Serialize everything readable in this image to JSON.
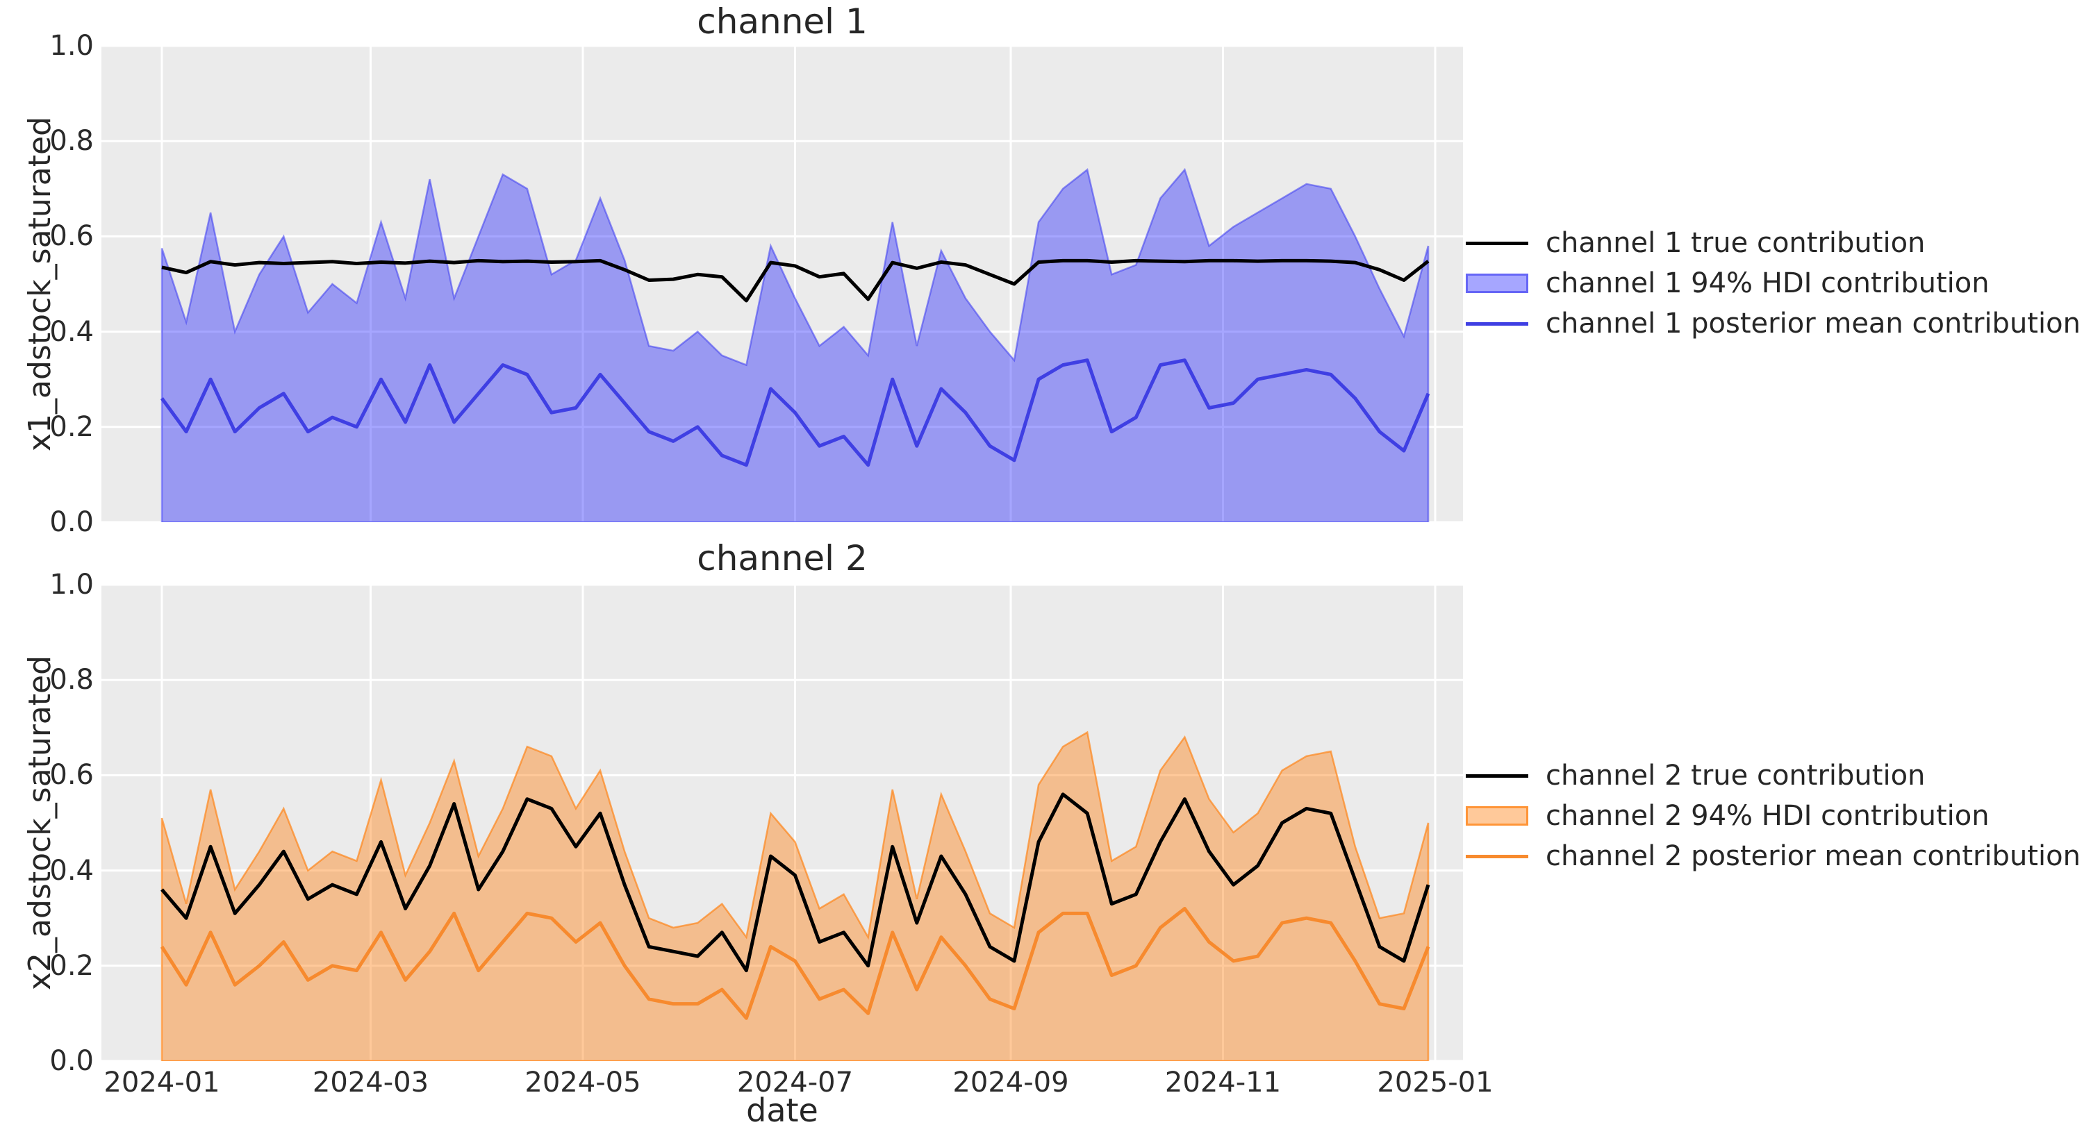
{
  "figure": {
    "background": "#ffffff",
    "plot_background": "#ebebeb",
    "grid_color": "#ffffff",
    "text_color": "#262626"
  },
  "xlabel": "date",
  "y_tick_labels": [
    "0.0",
    "0.2",
    "0.4",
    "0.6",
    "0.8",
    "1.0"
  ],
  "y_tick_values": [
    0.0,
    0.2,
    0.4,
    0.6,
    0.8,
    1.0
  ],
  "x_tick_labels": [
    "2024-01",
    "2024-03",
    "2024-05",
    "2024-07",
    "2024-09",
    "2024-11",
    "2025-01"
  ],
  "x_tick_day_offsets": [
    0,
    60,
    121,
    182,
    244,
    305,
    366
  ],
  "chart_data": [
    {
      "type": "area",
      "title": "channel 1",
      "ylabel": "x1_adstock_saturated",
      "xlabel": "date",
      "ylim": [
        0.0,
        1.0
      ],
      "grid": true,
      "legend_position": "center right",
      "x_start_date": "2024-01-01",
      "x_step_days": 7,
      "n_points": 53,
      "band": {
        "name": "channel 1 94% HDI contribution",
        "lower": 0,
        "fill": "rgba(0,0,255,0.35)",
        "edge": "rgba(60,60,240,0.55)",
        "upper": [
          0.575,
          0.42,
          0.65,
          0.4,
          0.52,
          0.6,
          0.44,
          0.5,
          0.46,
          0.63,
          0.47,
          0.72,
          0.47,
          0.6,
          0.73,
          0.7,
          0.52,
          0.55,
          0.68,
          0.55,
          0.37,
          0.36,
          0.4,
          0.35,
          0.33,
          0.58,
          0.47,
          0.37,
          0.41,
          0.35,
          0.63,
          0.37,
          0.57,
          0.47,
          0.4,
          0.34,
          0.63,
          0.7,
          0.74,
          0.52,
          0.54,
          0.68,
          0.74,
          0.58,
          0.62,
          0.65,
          0.68,
          0.71,
          0.7,
          0.6,
          0.49,
          0.39,
          0.58
        ]
      },
      "series": [
        {
          "name": "channel 1 true contribution",
          "color": "#000000",
          "width": 5,
          "values": [
            0.535,
            0.524,
            0.547,
            0.54,
            0.545,
            0.543,
            0.545,
            0.547,
            0.543,
            0.546,
            0.544,
            0.548,
            0.545,
            0.549,
            0.547,
            0.548,
            0.546,
            0.547,
            0.549,
            0.53,
            0.508,
            0.51,
            0.52,
            0.515,
            0.465,
            0.545,
            0.538,
            0.515,
            0.522,
            0.468,
            0.545,
            0.533,
            0.546,
            0.54,
            0.52,
            0.5,
            0.546,
            0.549,
            0.549,
            0.546,
            0.549,
            0.548,
            0.547,
            0.549,
            0.549,
            0.548,
            0.549,
            0.549,
            0.548,
            0.545,
            0.53,
            0.508,
            0.548
          ]
        },
        {
          "name": "channel 1 posterior mean contribution",
          "color": "#3f3fe3",
          "width": 5,
          "values": [
            0.26,
            0.19,
            0.3,
            0.19,
            0.24,
            0.27,
            0.19,
            0.22,
            0.2,
            0.3,
            0.21,
            0.33,
            0.21,
            0.27,
            0.33,
            0.31,
            0.23,
            0.24,
            0.31,
            0.25,
            0.19,
            0.17,
            0.2,
            0.14,
            0.12,
            0.28,
            0.23,
            0.16,
            0.18,
            0.12,
            0.3,
            0.16,
            0.28,
            0.23,
            0.16,
            0.13,
            0.3,
            0.33,
            0.34,
            0.19,
            0.22,
            0.33,
            0.34,
            0.24,
            0.25,
            0.3,
            0.31,
            0.32,
            0.31,
            0.26,
            0.19,
            0.15,
            0.27
          ]
        }
      ],
      "legend": [
        {
          "label": "channel 1 true contribution",
          "swatch": "line",
          "color": "#000000"
        },
        {
          "label": "channel 1 94% HDI contribution",
          "swatch": "patch",
          "fill": "rgba(0,0,255,0.35)",
          "edge": "rgba(60,60,240,0.6)"
        },
        {
          "label": "channel 1 posterior mean contribution",
          "swatch": "line",
          "color": "#3f3fe3"
        }
      ]
    },
    {
      "type": "area",
      "title": "channel 2",
      "ylabel": "x2_adstock_saturated",
      "xlabel": "date",
      "ylim": [
        0.0,
        1.0
      ],
      "grid": true,
      "legend_position": "center right",
      "x_start_date": "2024-01-01",
      "x_step_days": 7,
      "n_points": 53,
      "band": {
        "name": "channel 2 94% HDI contribution",
        "lower": 0,
        "fill": "rgba(255,127,14,0.42)",
        "edge": "rgba(255,127,14,0.65)",
        "upper": [
          0.51,
          0.33,
          0.57,
          0.36,
          0.44,
          0.53,
          0.4,
          0.44,
          0.42,
          0.59,
          0.39,
          0.5,
          0.63,
          0.43,
          0.53,
          0.66,
          0.64,
          0.53,
          0.61,
          0.44,
          0.3,
          0.28,
          0.29,
          0.33,
          0.26,
          0.52,
          0.46,
          0.32,
          0.35,
          0.26,
          0.57,
          0.34,
          0.56,
          0.44,
          0.31,
          0.28,
          0.58,
          0.66,
          0.69,
          0.42,
          0.45,
          0.61,
          0.68,
          0.55,
          0.48,
          0.52,
          0.61,
          0.64,
          0.65,
          0.45,
          0.3,
          0.31,
          0.5
        ]
      },
      "series": [
        {
          "name": "channel 2 true contribution",
          "color": "#000000",
          "width": 5,
          "values": [
            0.36,
            0.3,
            0.45,
            0.31,
            0.37,
            0.44,
            0.34,
            0.37,
            0.35,
            0.46,
            0.32,
            0.41,
            0.54,
            0.36,
            0.44,
            0.55,
            0.53,
            0.45,
            0.52,
            0.37,
            0.24,
            0.23,
            0.22,
            0.27,
            0.19,
            0.43,
            0.39,
            0.25,
            0.27,
            0.2,
            0.45,
            0.29,
            0.43,
            0.35,
            0.24,
            0.21,
            0.46,
            0.56,
            0.52,
            0.33,
            0.35,
            0.46,
            0.55,
            0.44,
            0.37,
            0.41,
            0.5,
            0.53,
            0.52,
            0.38,
            0.24,
            0.21,
            0.37
          ]
        },
        {
          "name": "channel 2 posterior mean contribution",
          "color": "#f78a2e",
          "width": 5,
          "values": [
            0.24,
            0.16,
            0.27,
            0.16,
            0.2,
            0.25,
            0.17,
            0.2,
            0.19,
            0.27,
            0.17,
            0.23,
            0.31,
            0.19,
            0.25,
            0.31,
            0.3,
            0.25,
            0.29,
            0.2,
            0.13,
            0.12,
            0.12,
            0.15,
            0.09,
            0.24,
            0.21,
            0.13,
            0.15,
            0.1,
            0.27,
            0.15,
            0.26,
            0.2,
            0.13,
            0.11,
            0.27,
            0.31,
            0.31,
            0.18,
            0.2,
            0.28,
            0.32,
            0.25,
            0.21,
            0.22,
            0.29,
            0.3,
            0.29,
            0.21,
            0.12,
            0.11,
            0.24
          ]
        }
      ],
      "legend": [
        {
          "label": "channel 2 true contribution",
          "swatch": "line",
          "color": "#000000"
        },
        {
          "label": "channel 2 94% HDI contribution",
          "swatch": "patch",
          "fill": "rgba(255,127,14,0.42)",
          "edge": "rgba(255,127,14,0.7)"
        },
        {
          "label": "channel 2 posterior mean contribution",
          "swatch": "line",
          "color": "#f78a2e"
        }
      ]
    }
  ]
}
